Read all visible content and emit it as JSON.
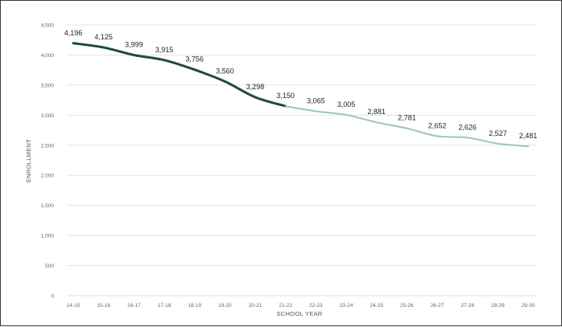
{
  "chart_data": {
    "type": "line",
    "title": "",
    "xlabel": "SCHOOL YEAR",
    "ylabel": "ENROLLMENT",
    "ylim": [
      0,
      4500
    ],
    "yticks": [
      0,
      500,
      1000,
      1500,
      2000,
      2500,
      3000,
      3500,
      4000,
      4500
    ],
    "ytick_labels": [
      "0",
      "500",
      "1,000",
      "1,500",
      "2,000",
      "2,500",
      "3,000",
      "3,500",
      "4,000",
      "4,500"
    ],
    "grid": true,
    "legend": "none",
    "categories": [
      "14-15",
      "15-16",
      "16-17",
      "17-18",
      "18-19",
      "19-20",
      "20-21",
      "21-22",
      "22-23",
      "23-24",
      "24-25",
      "25-26",
      "26-27",
      "27-28",
      "28-29",
      "29-30"
    ],
    "series": [
      {
        "segment": "actual",
        "color": "#1f4a3d",
        "x": [
          "14-15",
          "15-16",
          "16-17",
          "17-18",
          "18-19",
          "19-20",
          "20-21",
          "21-22"
        ],
        "values": [
          4196,
          4125,
          3999,
          3915,
          3756,
          3560,
          3298,
          3150
        ],
        "labels": [
          "4,196",
          "4,125",
          "3,999",
          "3,915",
          "3,756",
          "3,560",
          "3,298",
          "3,150"
        ]
      },
      {
        "segment": "projected",
        "color": "#9fc5b4",
        "x": [
          "21-22",
          "22-23",
          "23-24",
          "24-25",
          "25-26",
          "26-27",
          "27-28",
          "28-29",
          "29-30"
        ],
        "values": [
          3150,
          3065,
          3005,
          2881,
          2781,
          2652,
          2626,
          2527,
          2481
        ],
        "labels": [
          "",
          "3,065",
          "3,005",
          "2,881",
          "2,781",
          "2,652",
          "2,626",
          "2,527",
          "2,481"
        ]
      }
    ]
  }
}
